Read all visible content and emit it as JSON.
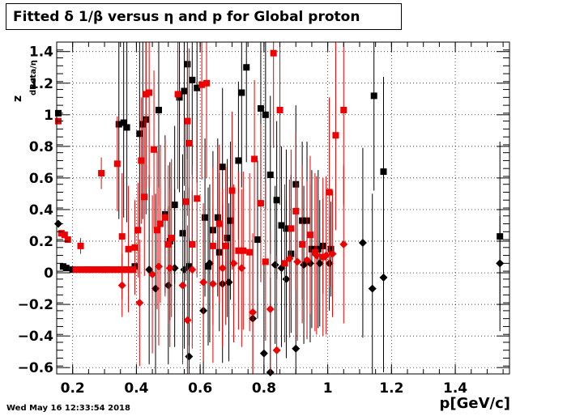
{
  "title": "Fitted δ 1/β versus η and p for Global proton",
  "timestamp": "Wed May 16 12:33:54 2018",
  "chart_data": {
    "type": "scatter",
    "xlabel": "p[GeV/c]",
    "ylabel_main": "z",
    "ylabel_sub": "dBeta/η",
    "xlim": [
      0.15,
      1.57
    ],
    "ylim": [
      -0.64,
      1.46
    ],
    "grid": true,
    "x_ticks": [
      0.2,
      0.4,
      0.6,
      0.8,
      1,
      1.2,
      1.4
    ],
    "x_tick_labels": [
      "0.2",
      "0.4",
      "0.6",
      "0.8",
      "1",
      "1.2",
      "1.4"
    ],
    "y_ticks": [
      -0.6,
      -0.4,
      -0.2,
      0,
      0.2,
      0.4,
      0.6,
      0.8,
      1,
      1.2,
      1.4
    ],
    "y_tick_labels": [
      "−0.6",
      "−0.4",
      "−0.2",
      "0",
      "0.2",
      "0.4",
      "0.6",
      "0.8",
      "1",
      "1.2",
      "1.4"
    ],
    "series": [
      {
        "color": "#000000",
        "marker": "square",
        "points": [
          [
            0.155,
            1.01,
            0.0
          ],
          [
            0.17,
            0.04,
            0.0
          ],
          [
            0.18,
            0.03,
            0.0
          ],
          [
            0.2,
            0.02,
            0.0
          ],
          [
            0.25,
            0.02,
            0.0
          ],
          [
            0.3,
            0.02,
            0.0
          ],
          [
            0.345,
            0.94,
            0.6
          ],
          [
            0.36,
            0.95,
            0.6
          ],
          [
            0.37,
            0.92,
            0.6
          ],
          [
            0.385,
            0.02,
            0.0
          ],
          [
            0.395,
            0.04,
            0.0
          ],
          [
            0.41,
            0.88,
            0.6
          ],
          [
            0.42,
            0.94,
            0.6
          ],
          [
            0.43,
            0.97,
            0.6
          ],
          [
            0.47,
            1.03,
            0.6
          ],
          [
            0.49,
            0.37,
            0.5
          ],
          [
            0.505,
            0.2,
            0.5
          ],
          [
            0.52,
            0.43,
            0.5
          ],
          [
            0.535,
            1.11,
            0.6
          ],
          [
            0.545,
            0.25,
            0.5
          ],
          [
            0.55,
            1.15,
            0.6
          ],
          [
            0.56,
            1.32,
            0.6
          ],
          [
            0.565,
            0.04,
            0.5
          ],
          [
            0.575,
            1.22,
            0.6
          ],
          [
            0.59,
            1.17,
            0.6
          ],
          [
            0.615,
            0.35,
            0.5
          ],
          [
            0.625,
            0.04,
            0.5
          ],
          [
            0.64,
            0.27,
            0.5
          ],
          [
            0.655,
            0.35,
            0.5
          ],
          [
            0.66,
            0.13,
            0.5
          ],
          [
            0.67,
            0.67,
            0.5
          ],
          [
            0.685,
            0.22,
            0.5
          ],
          [
            0.695,
            0.33,
            0.5
          ],
          [
            0.72,
            0.71,
            0.5
          ],
          [
            0.73,
            1.14,
            0.6
          ],
          [
            0.745,
            1.3,
            0.6
          ],
          [
            0.78,
            0.21,
            0.5
          ],
          [
            0.79,
            1.04,
            0.6
          ],
          [
            0.805,
            1.0,
            0.6
          ],
          [
            0.82,
            0.62,
            0.5
          ],
          [
            0.84,
            0.46,
            0.5
          ],
          [
            0.855,
            0.3,
            0.5
          ],
          [
            0.87,
            0.28,
            0.5
          ],
          [
            0.885,
            0.12,
            0.5
          ],
          [
            0.9,
            0.56,
            0.5
          ],
          [
            0.92,
            0.33,
            0.5
          ],
          [
            0.935,
            0.33,
            0.5
          ],
          [
            0.95,
            0.15,
            0.5
          ],
          [
            0.97,
            0.15,
            0.5
          ],
          [
            0.985,
            0.17,
            0.3
          ],
          [
            1.01,
            0.15,
            0.3
          ],
          [
            1.145,
            1.12,
            0.6
          ],
          [
            1.175,
            0.64,
            0.6
          ],
          [
            1.54,
            0.23,
            0.6
          ]
        ]
      },
      {
        "color": "#000000",
        "marker": "diamond",
        "points": [
          [
            0.155,
            0.31,
            0.0
          ],
          [
            0.44,
            0.02,
            0.6
          ],
          [
            0.46,
            -0.1,
            0.6
          ],
          [
            0.5,
            -0.08,
            0.5
          ],
          [
            0.52,
            0.03,
            0.5
          ],
          [
            0.55,
            0.02,
            0.5
          ],
          [
            0.565,
            -0.53,
            0.6
          ],
          [
            0.61,
            -0.24,
            0.6
          ],
          [
            0.63,
            0.06,
            0.5
          ],
          [
            0.67,
            -0.07,
            0.5
          ],
          [
            0.69,
            -0.06,
            0.5
          ],
          [
            0.765,
            -0.29,
            0.5
          ],
          [
            0.8,
            -0.51,
            0.6
          ],
          [
            0.82,
            -0.63,
            0.6
          ],
          [
            0.835,
            0.05,
            0.5
          ],
          [
            0.855,
            0.03,
            0.5
          ],
          [
            0.87,
            -0.04,
            0.5
          ],
          [
            0.9,
            -0.48,
            0.6
          ],
          [
            0.925,
            0.05,
            0.5
          ],
          [
            0.945,
            0.06,
            0.5
          ],
          [
            0.975,
            0.06,
            0.4
          ],
          [
            1.005,
            0.06,
            0.3
          ],
          [
            1.11,
            0.19,
            0.6
          ],
          [
            1.14,
            -0.1,
            0.6
          ],
          [
            1.175,
            -0.03,
            0.6
          ],
          [
            1.54,
            0.06,
            0.3
          ]
        ]
      },
      {
        "color": "#ee0000",
        "marker": "square",
        "points": [
          [
            0.155,
            0.96,
            0.0
          ],
          [
            0.165,
            0.25,
            0.0
          ],
          [
            0.175,
            0.24,
            0.0
          ],
          [
            0.185,
            0.21,
            0.0
          ],
          [
            0.225,
            0.17,
            0.05
          ],
          [
            0.29,
            0.63,
            0.1
          ],
          [
            0.34,
            0.69,
            0.3
          ],
          [
            0.355,
            0.23,
            0.4
          ],
          [
            0.375,
            0.15,
            0.4
          ],
          [
            0.395,
            0.16,
            0.3
          ],
          [
            0.405,
            0.27,
            0.3
          ],
          [
            0.415,
            0.71,
            0.4
          ],
          [
            0.425,
            0.48,
            0.5
          ],
          [
            0.43,
            1.13,
            0.6
          ],
          [
            0.44,
            1.14,
            0.6
          ],
          [
            0.455,
            0.78,
            0.5
          ],
          [
            0.465,
            0.27,
            0.5
          ],
          [
            0.475,
            0.31,
            0.5
          ],
          [
            0.49,
            0.35,
            0.5
          ],
          [
            0.5,
            0.18,
            0.5
          ],
          [
            0.51,
            0.22,
            0.5
          ],
          [
            0.53,
            1.13,
            0.6
          ],
          [
            0.555,
            0.45,
            0.5
          ],
          [
            0.56,
            0.96,
            0.6
          ],
          [
            0.565,
            0.82,
            0.6
          ],
          [
            0.575,
            0.18,
            0.5
          ],
          [
            0.59,
            0.47,
            0.5
          ],
          [
            0.605,
            1.19,
            0.6
          ],
          [
            0.62,
            1.2,
            0.6
          ],
          [
            0.64,
            0.17,
            0.5
          ],
          [
            0.66,
            0.31,
            0.5
          ],
          [
            0.68,
            0.17,
            0.5
          ],
          [
            0.7,
            0.52,
            0.5
          ],
          [
            0.72,
            0.14,
            0.5
          ],
          [
            0.735,
            0.14,
            0.5
          ],
          [
            0.755,
            0.13,
            0.5
          ],
          [
            0.77,
            0.72,
            0.5
          ],
          [
            0.79,
            0.44,
            0.5
          ],
          [
            0.805,
            0.07,
            0.5
          ],
          [
            0.83,
            1.39,
            0.6
          ],
          [
            0.85,
            1.03,
            0.6
          ],
          [
            0.865,
            0.06,
            0.5
          ],
          [
            0.885,
            0.28,
            0.5
          ],
          [
            0.9,
            0.39,
            0.5
          ],
          [
            0.92,
            0.18,
            0.5
          ],
          [
            0.945,
            0.24,
            0.5
          ],
          [
            0.96,
            0.13,
            0.5
          ],
          [
            0.985,
            0.1,
            0.5
          ],
          [
            1.005,
            0.51,
            0.6
          ],
          [
            1.025,
            0.87,
            0.6
          ],
          [
            1.05,
            1.03,
            0.6
          ]
        ]
      },
      {
        "color": "#ee0000",
        "marker": "diamond",
        "points": [
          [
            0.355,
            -0.08,
            0.2
          ],
          [
            0.41,
            -0.19,
            0.4
          ],
          [
            0.45,
            -0.01,
            0.5
          ],
          [
            0.47,
            0.04,
            0.5
          ],
          [
            0.505,
            0.03,
            0.5
          ],
          [
            0.545,
            -0.08,
            0.5
          ],
          [
            0.56,
            -0.3,
            0.6
          ],
          [
            0.575,
            0.02,
            0.5
          ],
          [
            0.61,
            -0.06,
            0.5
          ],
          [
            0.64,
            -0.07,
            0.5
          ],
          [
            0.67,
            0.03,
            0.5
          ],
          [
            0.705,
            0.06,
            0.5
          ],
          [
            0.73,
            0.03,
            0.5
          ],
          [
            0.765,
            -0.25,
            0.5
          ],
          [
            0.82,
            -0.23,
            0.5
          ],
          [
            0.84,
            -0.49,
            0.6
          ],
          [
            0.88,
            0.09,
            0.5
          ],
          [
            0.905,
            0.07,
            0.5
          ],
          [
            0.935,
            0.08,
            0.5
          ],
          [
            0.965,
            0.11,
            0.5
          ],
          [
            0.995,
            0.11,
            0.5
          ],
          [
            1.015,
            0.12,
            0.4
          ],
          [
            1.05,
            0.18,
            0.5
          ]
        ]
      },
      {
        "color": "#ee0000",
        "marker": "square",
        "points": [
          [
            0.21,
            0.02,
            0.0
          ],
          [
            0.22,
            0.02,
            0.0
          ],
          [
            0.23,
            0.02,
            0.0
          ],
          [
            0.24,
            0.02,
            0.0
          ],
          [
            0.25,
            0.02,
            0.0
          ],
          [
            0.26,
            0.02,
            0.0
          ],
          [
            0.27,
            0.02,
            0.0
          ],
          [
            0.28,
            0.02,
            0.0
          ],
          [
            0.29,
            0.02,
            0.0
          ],
          [
            0.3,
            0.02,
            0.0
          ],
          [
            0.31,
            0.02,
            0.0
          ],
          [
            0.32,
            0.02,
            0.0
          ],
          [
            0.33,
            0.02,
            0.0
          ],
          [
            0.34,
            0.02,
            0.0
          ],
          [
            0.35,
            0.02,
            0.0
          ],
          [
            0.36,
            0.02,
            0.0
          ],
          [
            0.37,
            0.02,
            0.0
          ],
          [
            0.38,
            0.02,
            0.0
          ],
          [
            0.39,
            0.02,
            0.0
          ]
        ]
      }
    ]
  }
}
